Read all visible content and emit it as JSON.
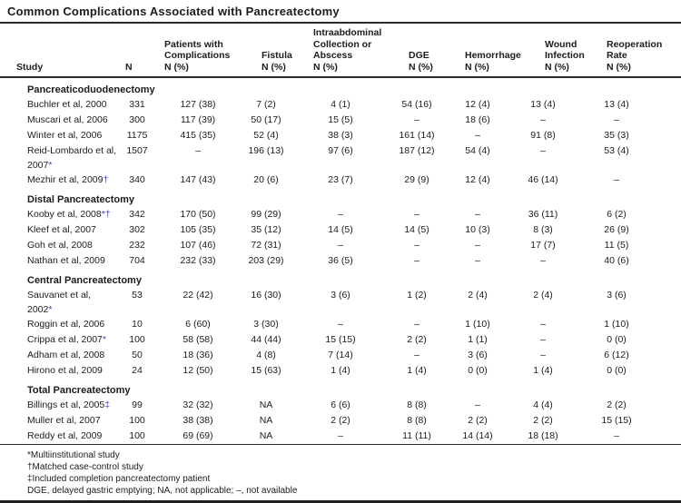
{
  "title": "Common Complications Associated with Pancreatectomy",
  "colors": {
    "marker_blue": "#3b3fc0",
    "text": "#1c1c1c",
    "rule": "#2a2a2a"
  },
  "table": {
    "columns": [
      {
        "key": "study",
        "label": "Study"
      },
      {
        "key": "n",
        "label": "N"
      },
      {
        "key": "complications",
        "label": "Patients with\nComplications\nN (%)"
      },
      {
        "key": "fistula",
        "label": "Fistula\nN (%)"
      },
      {
        "key": "abscess",
        "label": "Intraabdominal\nCollection or\nAbscess\nN (%)"
      },
      {
        "key": "dge",
        "label": "DGE\nN (%)"
      },
      {
        "key": "hemorrhage",
        "label": "Hemorrhage\nN (%)"
      },
      {
        "key": "wound",
        "label": "Wound\nInfection\nN (%)"
      },
      {
        "key": "reoperation",
        "label": "Reoperation\nRate\nN (%)"
      }
    ],
    "sections": [
      {
        "label": "Pancreaticoduodenectomy",
        "rows": [
          {
            "study": "Buchler et al, 2000",
            "marker": "",
            "cells": [
              "331",
              "127 (38)",
              "7 (2)",
              "4 (1)",
              "54 (16)",
              "12 (4)",
              "13 (4)",
              "13 (4)"
            ]
          },
          {
            "study": "Muscari et al, 2006",
            "marker": "",
            "cells": [
              "300",
              "117 (39)",
              "50 (17)",
              "15 (5)",
              "–",
              "18 (6)",
              "–",
              "–"
            ]
          },
          {
            "study": "Winter et al, 2006",
            "marker": "",
            "cells": [
              "1175",
              "415 (35)",
              "52 (4)",
              "38 (3)",
              "161 (14)",
              "–",
              "91 (8)",
              "35 (3)"
            ]
          },
          {
            "study": "Reid-Lombardo et al,\n 2007",
            "marker": "*",
            "cells": [
              "1507",
              "–",
              "196 (13)",
              "97 (6)",
              "187 (12)",
              "54 (4)",
              "–",
              "53 (4)"
            ]
          },
          {
            "study": "Mezhir et al, 2009",
            "marker": "†",
            "cells": [
              "340",
              "147 (43)",
              "20 (6)",
              "23 (7)",
              "29 (9)",
              "12 (4)",
              "46 (14)",
              "–"
            ]
          }
        ]
      },
      {
        "label": "Distal Pancreatectomy",
        "rows": [
          {
            "study": "Kooby et al, 2008",
            "marker": "*†",
            "cells": [
              "342",
              "170 (50)",
              "99 (29)",
              "–",
              "–",
              "–",
              "36 (11)",
              "6 (2)"
            ]
          },
          {
            "study": "Kleef et al, 2007",
            "marker": "",
            "cells": [
              "302",
              "105 (35)",
              "35 (12)",
              "14 (5)",
              "14 (5)",
              "10 (3)",
              "8 (3)",
              "26 (9)"
            ]
          },
          {
            "study": "Goh et al, 2008",
            "marker": "",
            "cells": [
              "232",
              "107 (46)",
              "72 (31)",
              "–",
              "–",
              "–",
              "17 (7)",
              "11 (5)"
            ]
          },
          {
            "study": "Nathan et al, 2009",
            "marker": "",
            "cells": [
              "704",
              "232 (33)",
              "203 (29)",
              "36 (5)",
              "–",
              "–",
              "–",
              "40 (6)"
            ]
          }
        ]
      },
      {
        "label": "Central Pancreatectomy",
        "rows": [
          {
            "study": "Sauvanet et al, 2002",
            "marker": "*",
            "cells": [
              "53",
              "22 (42)",
              "16 (30)",
              "3 (6)",
              "1 (2)",
              "2 (4)",
              "2 (4)",
              "3 (6)"
            ]
          },
          {
            "study": "Roggin et al, 2006",
            "marker": "",
            "cells": [
              "10",
              "6 (60)",
              "3 (30)",
              "–",
              "–",
              "1 (10)",
              "–",
              "1 (10)"
            ]
          },
          {
            "study": "Crippa et al, 2007",
            "marker": "*",
            "cells": [
              "100",
              "58 (58)",
              "44 (44)",
              "15 (15)",
              "2 (2)",
              "1 (1)",
              "–",
              "0 (0)"
            ]
          },
          {
            "study": "Adham et al, 2008",
            "marker": "",
            "cells": [
              "50",
              "18 (36)",
              "4 (8)",
              "7 (14)",
              "–",
              "3 (6)",
              "–",
              "6 (12)"
            ]
          },
          {
            "study": "Hirono et al, 2009",
            "marker": "",
            "cells": [
              "24",
              "12 (50)",
              "15 (63)",
              "1 (4)",
              "1 (4)",
              "0 (0)",
              "1 (4)",
              "0 (0)"
            ]
          }
        ]
      },
      {
        "label": "Total Pancreatectomy",
        "rows": [
          {
            "study": "Billings et al, 2005",
            "marker": "‡",
            "cells": [
              "99",
              "32 (32)",
              "NA",
              "6 (6)",
              "8 (8)",
              "–",
              "4 (4)",
              "2 (2)"
            ]
          },
          {
            "study": "Muller et al, 2007",
            "marker": "",
            "cells": [
              "100",
              "38 (38)",
              "NA",
              "2 (2)",
              "8 (8)",
              "2 (2)",
              "2 (2)",
              "15 (15)"
            ]
          },
          {
            "study": "Reddy et al, 2009",
            "marker": "",
            "cells": [
              "100",
              "69 (69)",
              "NA",
              "–",
              "11 (11)",
              "14 (14)",
              "18 (18)",
              "–"
            ]
          }
        ]
      }
    ]
  },
  "footnotes": [
    "*Multiinstitutional study",
    "†Matched case-control study",
    "‡Included completion pancreatectomy patient",
    "DGE, delayed gastric emptying; NA, not applicable; –, not available"
  ]
}
